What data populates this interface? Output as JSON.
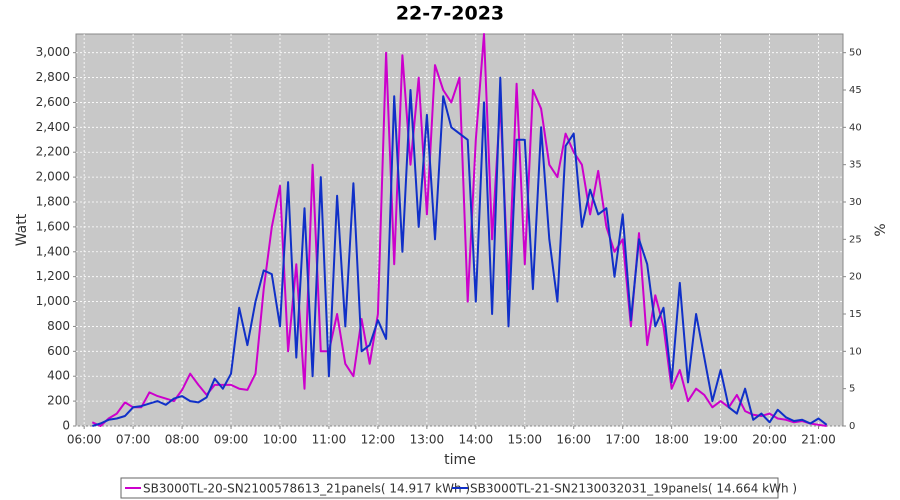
{
  "chart_data": {
    "type": "line",
    "title": "22-7-2023",
    "xlabel": "time",
    "ylabel": "Watt",
    "y2label": "%",
    "grid": true,
    "legend": "bottom",
    "xlim": [
      "05:50",
      "21:30"
    ],
    "xticks": [
      "06:00",
      "07:00",
      "08:00",
      "09:00",
      "10:00",
      "11:00",
      "12:00",
      "13:00",
      "14:00",
      "15:00",
      "16:00",
      "17:00",
      "18:00",
      "19:00",
      "20:00",
      "21:00"
    ],
    "ylim": [
      0,
      3150
    ],
    "yticks": [
      0,
      200,
      400,
      600,
      800,
      {
        "value": 1000,
        "label": "1,000"
      },
      {
        "value": 1200,
        "label": "1,200"
      },
      {
        "value": 1400,
        "label": "1,400"
      },
      {
        "value": 1600,
        "label": "1,600"
      },
      {
        "value": 1800,
        "label": "1,800"
      },
      {
        "value": 2000,
        "label": "2,000"
      },
      {
        "value": 2200,
        "label": "2,200"
      },
      {
        "value": 2400,
        "label": "2,400"
      },
      {
        "value": 2600,
        "label": "2,600"
      },
      {
        "value": 2800,
        "label": "2,800"
      },
      {
        "value": 3000,
        "label": "3,000"
      }
    ],
    "y2lim": [
      0,
      52.5
    ],
    "y2ticks": [
      0,
      5,
      10,
      15,
      20,
      25,
      30,
      35,
      40,
      45,
      50
    ],
    "x": [
      "06:10",
      "06:20",
      "06:30",
      "06:40",
      "06:50",
      "07:00",
      "07:10",
      "07:20",
      "07:30",
      "07:40",
      "07:50",
      "08:00",
      "08:10",
      "08:20",
      "08:30",
      "08:40",
      "08:50",
      "09:00",
      "09:10",
      "09:20",
      "09:30",
      "09:40",
      "09:50",
      "10:00",
      "10:10",
      "10:20",
      "10:30",
      "10:40",
      "10:50",
      "11:00",
      "11:10",
      "11:20",
      "11:30",
      "11:40",
      "11:50",
      "12:00",
      "12:10",
      "12:20",
      "12:30",
      "12:40",
      "12:50",
      "13:00",
      "13:10",
      "13:20",
      "13:30",
      "13:40",
      "13:50",
      "14:00",
      "14:10",
      "14:20",
      "14:30",
      "14:40",
      "14:50",
      "15:00",
      "15:10",
      "15:20",
      "15:30",
      "15:40",
      "15:50",
      "16:00",
      "16:10",
      "16:20",
      "16:30",
      "16:40",
      "16:50",
      "17:00",
      "17:10",
      "17:20",
      "17:30",
      "17:40",
      "17:50",
      "18:00",
      "18:10",
      "18:20",
      "18:30",
      "18:40",
      "18:50",
      "19:00",
      "19:10",
      "19:20",
      "19:30",
      "19:40",
      "19:50",
      "20:00",
      "20:10",
      "20:20",
      "20:30",
      "20:40",
      "20:50",
      "21:00",
      "21:10"
    ],
    "series": [
      {
        "name": "SB3000TL-20-SN2100578613_21panels( 14.917 kWh )",
        "color": "#cc00cc",
        "values": [
          30,
          0,
          60,
          100,
          190,
          150,
          150,
          270,
          240,
          220,
          200,
          290,
          420,
          330,
          250,
          330,
          330,
          330,
          300,
          290,
          420,
          1100,
          1600,
          1930,
          600,
          1300,
          300,
          2100,
          600,
          600,
          900,
          500,
          400,
          860,
          500,
          900,
          3000,
          1300,
          2980,
          2100,
          2800,
          1700,
          2900,
          2700,
          2600,
          2800,
          1000,
          2300,
          3150,
          1500,
          2600,
          1100,
          2750,
          1300,
          2700,
          2550,
          2100,
          2000,
          2350,
          2200,
          2100,
          1700,
          2050,
          1600,
          1400,
          1500,
          800,
          1550,
          650,
          1050,
          800,
          300,
          450,
          200,
          300,
          250,
          150,
          200,
          150,
          250,
          120,
          90,
          80,
          100,
          60,
          50,
          30,
          40,
          20,
          10,
          0
        ]
      },
      {
        "name": "SB3000TL-21-SN2130032031_19panels( 14.664 kWh )",
        "color": "#1030c8",
        "values": [
          0,
          20,
          50,
          60,
          80,
          150,
          160,
          180,
          200,
          170,
          220,
          240,
          200,
          190,
          230,
          380,
          300,
          420,
          950,
          650,
          1000,
          1250,
          1220,
          800,
          1960,
          550,
          1750,
          400,
          2000,
          400,
          1850,
          800,
          1950,
          600,
          650,
          850,
          700,
          2650,
          1400,
          2700,
          1600,
          2500,
          1500,
          2650,
          2400,
          2350,
          2300,
          1000,
          2600,
          900,
          2800,
          800,
          2300,
          2300,
          1100,
          2400,
          1500,
          1000,
          2250,
          2350,
          1600,
          1900,
          1700,
          1750,
          1200,
          1700,
          850,
          1500,
          1300,
          800,
          950,
          350,
          1150,
          350,
          900,
          550,
          200,
          450,
          150,
          100,
          300,
          50,
          100,
          30,
          130,
          70,
          40,
          50,
          20,
          60,
          10
        ]
      }
    ]
  }
}
